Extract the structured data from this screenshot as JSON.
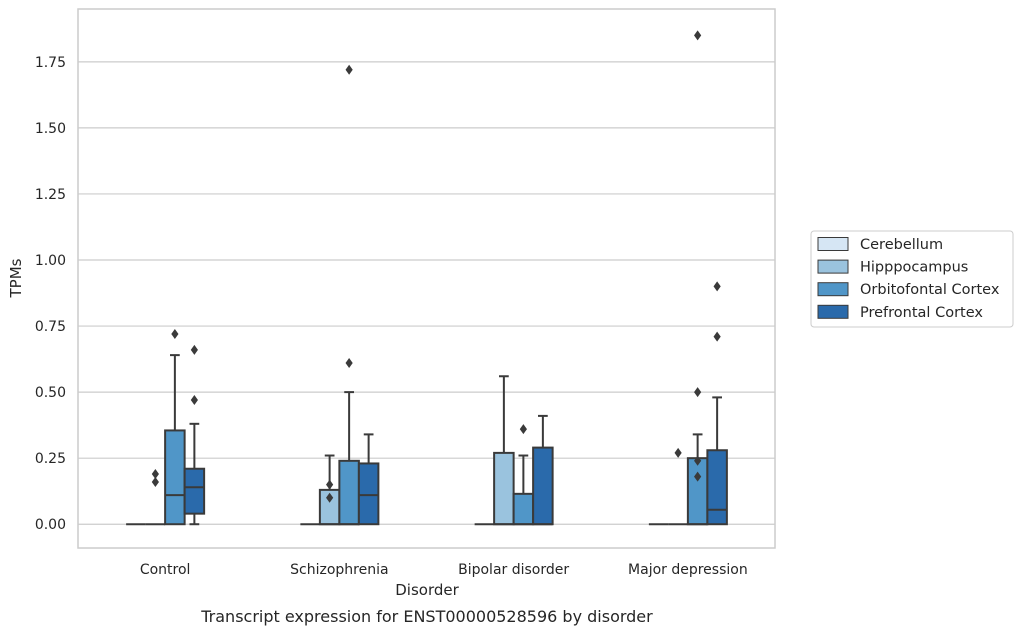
{
  "chart_data": {
    "type": "boxplot",
    "xlabel": "Disorder",
    "ylabel": "TPMs",
    "caption": "Transcript expression for ENST00000528596 by disorder",
    "categories": [
      "Control",
      "Schizophrenia",
      "Bipolar disorder",
      "Major depression"
    ],
    "ylim": [
      -0.09,
      1.95
    ],
    "yticks": [
      0.0,
      0.25,
      0.5,
      0.75,
      1.0,
      1.25,
      1.5,
      1.75
    ],
    "ytick_labels": [
      "0.00",
      "0.25",
      "0.50",
      "0.75",
      "1.00",
      "1.25",
      "1.50",
      "1.75"
    ],
    "grid": "horizontal",
    "legend_position": "right",
    "series": [
      {
        "name": "Cerebellum",
        "color": "#d6e6f4",
        "boxes": [
          {
            "q1": 0,
            "median": 0,
            "q3": 0,
            "whisker_low": 0,
            "whisker_high": 0,
            "outliers": []
          },
          {
            "q1": 0,
            "median": 0,
            "q3": 0,
            "whisker_low": 0,
            "whisker_high": 0,
            "outliers": []
          },
          {
            "q1": 0,
            "median": 0,
            "q3": 0,
            "whisker_low": 0,
            "whisker_high": 0,
            "outliers": []
          },
          {
            "q1": 0,
            "median": 0,
            "q3": 0,
            "whisker_low": 0,
            "whisker_high": 0,
            "outliers": []
          }
        ]
      },
      {
        "name": "Hipppocampus",
        "color": "#9ac3de",
        "boxes": [
          {
            "q1": 0,
            "median": 0,
            "q3": 0,
            "whisker_low": 0,
            "whisker_high": 0,
            "outliers": [
              0.19,
              0.16
            ]
          },
          {
            "q1": 0,
            "median": 0,
            "q3": 0.13,
            "whisker_low": 0,
            "whisker_high": 0.26,
            "outliers": [
              0.15,
              0.1
            ]
          },
          {
            "q1": 0,
            "median": 0,
            "q3": 0.27,
            "whisker_low": 0,
            "whisker_high": 0.56,
            "outliers": []
          },
          {
            "q1": 0,
            "median": 0,
            "q3": 0,
            "whisker_low": 0,
            "whisker_high": 0,
            "outliers": [
              0.27
            ]
          }
        ]
      },
      {
        "name": "Orbitofontal Cortex",
        "color": "#5096c8",
        "boxes": [
          {
            "q1": 0,
            "median": 0.11,
            "q3": 0.355,
            "whisker_low": 0,
            "whisker_high": 0.64,
            "outliers": [
              0.72
            ]
          },
          {
            "q1": 0,
            "median": 0,
            "q3": 0.24,
            "whisker_low": 0,
            "whisker_high": 0.5,
            "outliers": [
              0.61,
              1.72
            ]
          },
          {
            "q1": 0,
            "median": 0,
            "q3": 0.115,
            "whisker_low": 0,
            "whisker_high": 0.26,
            "outliers": [
              0.36
            ]
          },
          {
            "q1": 0,
            "median": 0,
            "q3": 0.25,
            "whisker_low": 0,
            "whisker_high": 0.34,
            "outliers": [
              0.5,
              0.24,
              0.18,
              1.85
            ]
          }
        ]
      },
      {
        "name": "Prefrontal Cortex",
        "color": "#2a6aab",
        "boxes": [
          {
            "q1": 0.04,
            "median": 0.14,
            "q3": 0.21,
            "whisker_low": 0,
            "whisker_high": 0.38,
            "outliers": [
              0.66,
              0.47
            ]
          },
          {
            "q1": 0,
            "median": 0.11,
            "q3": 0.23,
            "whisker_low": 0,
            "whisker_high": 0.34,
            "outliers": []
          },
          {
            "q1": 0,
            "median": 0,
            "q3": 0.29,
            "whisker_low": 0,
            "whisker_high": 0.41,
            "outliers": []
          },
          {
            "q1": 0,
            "median": 0.055,
            "q3": 0.28,
            "whisker_low": 0,
            "whisker_high": 0.48,
            "outliers": [
              0.9,
              0.71
            ]
          }
        ]
      }
    ]
  }
}
